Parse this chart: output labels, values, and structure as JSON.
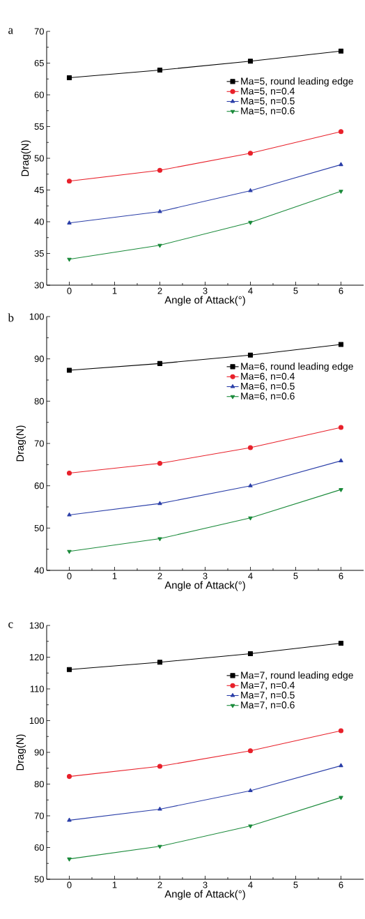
{
  "chart_data": [
    {
      "type": "line",
      "annotations": [
        "a"
      ],
      "xlabel": "Angle of Attack(°)",
      "ylabel": "Drag(N)",
      "x": [
        0,
        2,
        4,
        6
      ],
      "xlim": [
        -0.5,
        6.5
      ],
      "xticks": [
        0,
        1,
        2,
        3,
        4,
        5,
        6
      ],
      "ylim": [
        30,
        70
      ],
      "yticks": [
        30,
        35,
        40,
        45,
        50,
        55,
        60,
        65,
        70
      ],
      "legend": "top right",
      "grid": false,
      "series": [
        {
          "name": "Ma=5, round leading edge",
          "color": "#000000",
          "marker": "square",
          "values": [
            62.7,
            63.9,
            65.3,
            66.9
          ]
        },
        {
          "name": "Ma=5, n=0.4",
          "color": "#e8202a",
          "marker": "circle",
          "values": [
            46.4,
            48.1,
            50.8,
            54.2
          ]
        },
        {
          "name": "Ma=5, n=0.5",
          "color": "#2b3fa8",
          "marker": "triangle",
          "values": [
            39.8,
            41.6,
            44.9,
            49.0
          ]
        },
        {
          "name": "Ma=5, n=0.6",
          "color": "#1a8a3a",
          "marker": "triangle-down",
          "values": [
            34.1,
            36.3,
            39.9,
            44.8
          ]
        }
      ]
    },
    {
      "type": "line",
      "annotations": [
        "b"
      ],
      "xlabel": "Angle of Attack(°)",
      "ylabel": "Drag(N)",
      "x": [
        0,
        2,
        4,
        6
      ],
      "xlim": [
        -0.5,
        6.5
      ],
      "xticks": [
        0,
        1,
        2,
        3,
        4,
        5,
        6
      ],
      "ylim": [
        40,
        100
      ],
      "yticks": [
        40,
        50,
        60,
        70,
        80,
        90,
        100
      ],
      "legend": "top right",
      "grid": false,
      "series": [
        {
          "name": "Ma=6, round leading edge",
          "color": "#000000",
          "marker": "square",
          "values": [
            87.3,
            88.9,
            90.9,
            93.4
          ]
        },
        {
          "name": "Ma=6, n=0.4",
          "color": "#e8202a",
          "marker": "circle",
          "values": [
            63.0,
            65.3,
            69.0,
            73.8
          ]
        },
        {
          "name": "Ma=6, n=0.5",
          "color": "#2b3fa8",
          "marker": "triangle",
          "values": [
            53.1,
            55.8,
            60.0,
            65.9
          ]
        },
        {
          "name": "Ma=6, n=0.6",
          "color": "#1a8a3a",
          "marker": "triangle-down",
          "values": [
            44.5,
            47.5,
            52.4,
            59.1
          ]
        }
      ]
    },
    {
      "type": "line",
      "annotations": [
        "c"
      ],
      "xlabel": "Angle of Attack(°)",
      "ylabel": "Drag(N)",
      "x": [
        0,
        2,
        4,
        6
      ],
      "xlim": [
        -0.5,
        6.5
      ],
      "xticks": [
        0,
        1,
        2,
        3,
        4,
        5,
        6
      ],
      "ylim": [
        50,
        130
      ],
      "yticks": [
        50,
        60,
        70,
        80,
        90,
        100,
        110,
        120,
        130
      ],
      "legend": "top right",
      "grid": false,
      "series": [
        {
          "name": "Ma=7, round leading edge",
          "color": "#000000",
          "marker": "square",
          "values": [
            116.1,
            118.4,
            121.1,
            124.4
          ]
        },
        {
          "name": "Ma=7, n=0.4",
          "color": "#e8202a",
          "marker": "circle",
          "values": [
            82.4,
            85.6,
            90.5,
            96.8
          ]
        },
        {
          "name": "Ma=7, n=0.5",
          "color": "#2b3fa8",
          "marker": "triangle",
          "values": [
            68.6,
            72.1,
            77.9,
            85.8
          ]
        },
        {
          "name": "Ma=7, n=0.6",
          "color": "#1a8a3a",
          "marker": "triangle-down",
          "values": [
            56.4,
            60.4,
            66.8,
            75.8
          ]
        }
      ]
    }
  ]
}
